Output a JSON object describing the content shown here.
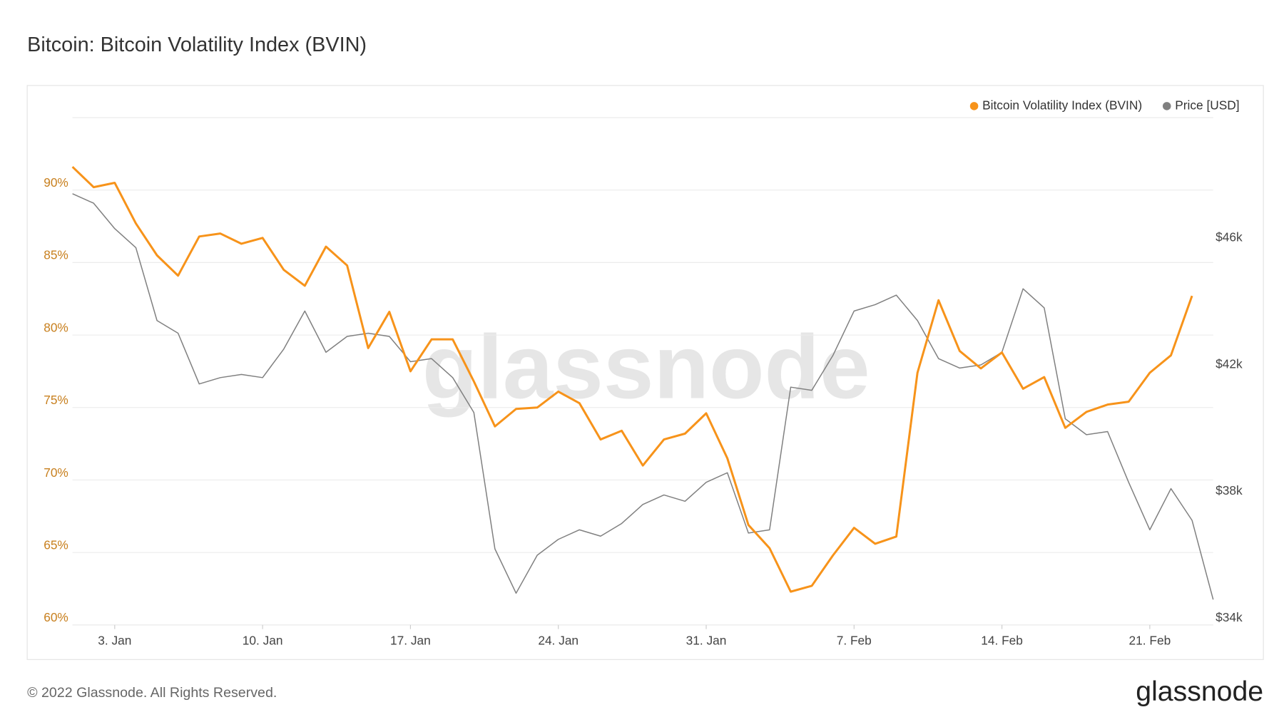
{
  "chart_data": {
    "type": "line",
    "title": "Bitcoin: Bitcoin Volatility Index (BVIN)",
    "watermark": "glassnode",
    "footer": "© 2022 Glassnode. All Rights Reserved.",
    "logo": "glassnode",
    "x": [
      "1. Jan",
      "2. Jan",
      "3. Jan",
      "4. Jan",
      "5. Jan",
      "6. Jan",
      "7. Jan",
      "8. Jan",
      "9. Jan",
      "10. Jan",
      "11. Jan",
      "12. Jan",
      "13. Jan",
      "14. Jan",
      "15. Jan",
      "16. Jan",
      "17. Jan",
      "18. Jan",
      "19. Jan",
      "20. Jan",
      "21. Jan",
      "22. Jan",
      "23. Jan",
      "24. Jan",
      "25. Jan",
      "26. Jan",
      "27. Jan",
      "28. Jan",
      "29. Jan",
      "30. Jan",
      "31. Jan",
      "1. Feb",
      "2. Feb",
      "3. Feb",
      "4. Feb",
      "5. Feb",
      "6. Feb",
      "7. Feb",
      "8. Feb",
      "9. Feb",
      "10. Feb",
      "11. Feb",
      "12. Feb",
      "13. Feb",
      "14. Feb",
      "15. Feb",
      "16. Feb",
      "17. Feb",
      "18. Feb",
      "19. Feb",
      "20. Feb",
      "21. Feb",
      "22. Feb",
      "23. Feb",
      "24. Feb"
    ],
    "xticks": [
      "3. Jan",
      "10. Jan",
      "17. Jan",
      "24. Jan",
      "31. Jan",
      "7. Feb",
      "14. Feb",
      "21. Feb"
    ],
    "series": [
      {
        "name": "Bitcoin Volatility Index (BVIN)",
        "color": "#f7931a",
        "axis": "y",
        "values": [
          91.6,
          90.2,
          90.5,
          87.7,
          85.5,
          84.1,
          86.8,
          87.0,
          86.3,
          86.7,
          84.5,
          83.4,
          86.1,
          84.8,
          79.1,
          81.6,
          77.5,
          79.7,
          79.7,
          76.8,
          73.7,
          74.9,
          75.0,
          76.1,
          75.3,
          72.8,
          73.4,
          71.0,
          72.8,
          73.2,
          74.6,
          71.5,
          66.9,
          65.3,
          62.3,
          62.7,
          64.8,
          66.7,
          65.6,
          66.1,
          77.4,
          82.4,
          78.9,
          77.7,
          78.8,
          76.3,
          77.1,
          73.6,
          74.7,
          75.2,
          75.4,
          77.4,
          78.6,
          82.7,
          null
        ]
      },
      {
        "name": "Price [USD]",
        "color": "#808080",
        "axis": "y2",
        "values": [
          47600,
          47300,
          46500,
          45900,
          43600,
          43200,
          41600,
          41800,
          41900,
          41800,
          42700,
          43900,
          42600,
          43100,
          43200,
          43100,
          42300,
          42400,
          41800,
          40700,
          36400,
          35000,
          36200,
          36700,
          37000,
          36800,
          37200,
          37800,
          38100,
          37900,
          38500,
          38800,
          36900,
          37000,
          41500,
          41400,
          42500,
          43900,
          44100,
          44400,
          43600,
          42400,
          42100,
          42200,
          42600,
          44600,
          44000,
          40500,
          40000,
          40100,
          38500,
          37000,
          38300,
          37300,
          34800
        ]
      }
    ],
    "ylim": [
      60,
      95
    ],
    "yticks": [
      {
        "value": 60,
        "label": "60%"
      },
      {
        "value": 65,
        "label": "65%"
      },
      {
        "value": 70,
        "label": "70%"
      },
      {
        "value": 75,
        "label": "75%"
      },
      {
        "value": 80,
        "label": "80%"
      },
      {
        "value": 85,
        "label": "85%"
      },
      {
        "value": 90,
        "label": "90%"
      }
    ],
    "y2lim": [
      34000,
      50000
    ],
    "y2ticks": [
      {
        "value": 34000,
        "label": "$34k"
      },
      {
        "value": 38000,
        "label": "$38k"
      },
      {
        "value": 42000,
        "label": "$42k"
      },
      {
        "value": 46000,
        "label": "$46k"
      }
    ],
    "grid": true,
    "legend": "top-right"
  }
}
